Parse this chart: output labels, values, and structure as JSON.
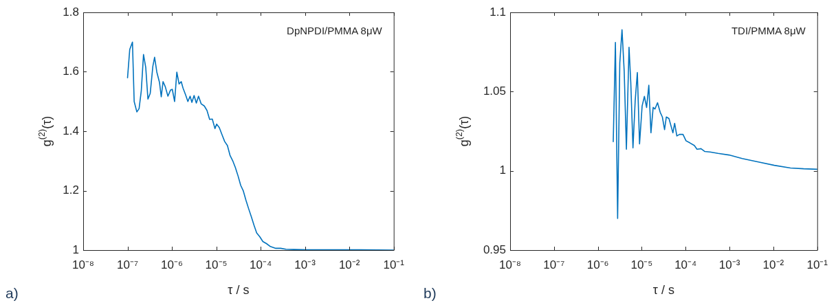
{
  "chart_data": [
    {
      "type": "line",
      "xlabel": "τ / s",
      "ylabel": "g$^{(2)}$(τ)",
      "log": "x",
      "annotations": [
        "DpNPDI/PMMA 8μW",
        "a)"
      ],
      "xlim": [
        1e-08,
        0.1
      ],
      "ylim": [
        1,
        1.8
      ],
      "xticks": [
        {
          "value": 1e-08,
          "label": "10⁻⁸"
        },
        {
          "value": 1e-07,
          "label": "10⁻⁷"
        },
        {
          "value": 1e-06,
          "label": "10⁻⁶"
        },
        {
          "value": 1e-05,
          "label": "10⁻⁵"
        },
        {
          "value": 0.0001,
          "label": "10⁻⁴"
        },
        {
          "value": 0.001,
          "label": "10⁻³"
        },
        {
          "value": 0.01,
          "label": "10⁻²"
        },
        {
          "value": 0.1,
          "label": "10⁻¹"
        }
      ],
      "yticks": [
        1,
        1.2,
        1.4,
        1.6,
        1.8
      ],
      "series": [
        {
          "color": "#0072bd",
          "x": [
            1e-07,
            1.12e-07,
            1.29e-07,
            1.41e-07,
            1.62e-07,
            1.82e-07,
            2.04e-07,
            2.29e-07,
            2.57e-07,
            2.88e-07,
            3.24e-07,
            3.72e-07,
            4.07e-07,
            4.57e-07,
            5.25e-07,
            5.75e-07,
            6.31e-07,
            7.08e-07,
            8.13e-07,
            9.33e-07,
            1.02e-06,
            1.15e-06,
            1.29e-06,
            1.45e-06,
            1.62e-06,
            1.78e-06,
            2.04e-06,
            2.29e-06,
            2.57e-06,
            2.82e-06,
            3.16e-06,
            3.55e-06,
            3.98e-06,
            4.57e-06,
            5.37e-06,
            6.17e-06,
            7.08e-06,
            8.13e-06,
            9.33e-06,
            1.02e-05,
            1.17e-05,
            1.35e-05,
            1.55e-05,
            1.78e-05,
            2.04e-05,
            2.34e-05,
            2.69e-05,
            3.09e-05,
            3.55e-05,
            4.07e-05,
            4.68e-05,
            5.37e-05,
            6.17e-05,
            7.08e-05,
            8.13e-05,
            9.55e-05,
            0.000112,
            0.000135,
            0.000166,
            0.000219,
            0.000282,
            0.000372,
            0.000562,
            0.00112,
            0.00447,
            0.0174,
            0.1
          ],
          "values": [
            1.58,
            1.675,
            1.7,
            1.5,
            1.465,
            1.476,
            1.536,
            1.658,
            1.615,
            1.508,
            1.527,
            1.619,
            1.649,
            1.599,
            1.564,
            1.516,
            1.567,
            1.55,
            1.518,
            1.539,
            1.541,
            1.5,
            1.599,
            1.559,
            1.567,
            1.545,
            1.522,
            1.5,
            1.518,
            1.497,
            1.52,
            1.495,
            1.518,
            1.492,
            1.485,
            1.47,
            1.44,
            1.441,
            1.409,
            1.424,
            1.412,
            1.388,
            1.365,
            1.352,
            1.319,
            1.301,
            1.278,
            1.25,
            1.218,
            1.199,
            1.167,
            1.139,
            1.112,
            1.084,
            1.058,
            1.045,
            1.029,
            1.022,
            1.012,
            1.006,
            1.006,
            1.003,
            1.002,
            1.001,
            1.001,
            1.001,
            1.0
          ]
        }
      ]
    },
    {
      "type": "line",
      "xlabel": "τ / s",
      "ylabel": "g$^{(2)}$(τ)",
      "log": "x",
      "annotations": [
        "TDI/PMMA 8μW",
        "b)"
      ],
      "xlim": [
        1e-08,
        0.1
      ],
      "ylim": [
        0.95,
        1.1
      ],
      "xticks": [
        {
          "value": 1e-08,
          "label": "10⁻⁸"
        },
        {
          "value": 1e-07,
          "label": "10⁻⁷"
        },
        {
          "value": 1e-06,
          "label": "10⁻⁶"
        },
        {
          "value": 1e-05,
          "label": "10⁻⁵"
        },
        {
          "value": 0.0001,
          "label": "10⁻⁴"
        },
        {
          "value": 0.001,
          "label": "10⁻³"
        },
        {
          "value": 0.01,
          "label": "10⁻²"
        },
        {
          "value": 0.1,
          "label": "10⁻¹"
        }
      ],
      "yticks": [
        0.95,
        1,
        1.05,
        1.1
      ],
      "series": [
        {
          "color": "#0072bd",
          "x": [
            2.24e-06,
            2.51e-06,
            2.82e-06,
            3.16e-06,
            3.55e-06,
            3.98e-06,
            4.47e-06,
            5.13e-06,
            5.62e-06,
            6.31e-06,
            7.08e-06,
            7.94e-06,
            8.91e-06,
            1.02e-05,
            1.15e-05,
            1.29e-05,
            1.45e-05,
            1.62e-05,
            1.82e-05,
            2e-05,
            2.29e-05,
            2.63e-05,
            2.95e-05,
            3.31e-05,
            3.63e-05,
            4.17e-05,
            4.79e-05,
            5.13e-05,
            5.62e-05,
            6.31e-05,
            7.24e-05,
            8.71e-05,
            0.000102,
            0.000126,
            0.000158,
            0.000182,
            0.000224,
            0.000275,
            0.000363,
            0.00055,
            0.000977,
            0.00195,
            0.00457,
            0.0105,
            0.0245,
            0.049,
            0.1
          ],
          "values": [
            1.0184,
            1.081,
            0.97,
            1.068,
            1.089,
            1.063,
            1.0136,
            1.078,
            1.056,
            1.0145,
            1.044,
            1.062,
            1.017,
            1.041,
            1.047,
            1.04,
            1.054,
            1.024,
            1.04,
            1.039,
            1.043,
            1.037,
            1.034,
            1.026,
            1.034,
            1.033,
            1.027,
            1.024,
            1.03,
            1.022,
            1.023,
            1.023,
            1.019,
            1.0176,
            1.016,
            1.0136,
            1.014,
            1.0122,
            1.0119,
            1.011,
            1.01,
            1.0078,
            1.0056,
            1.0035,
            1.0018,
            1.0013,
            1.001
          ]
        }
      ]
    }
  ]
}
